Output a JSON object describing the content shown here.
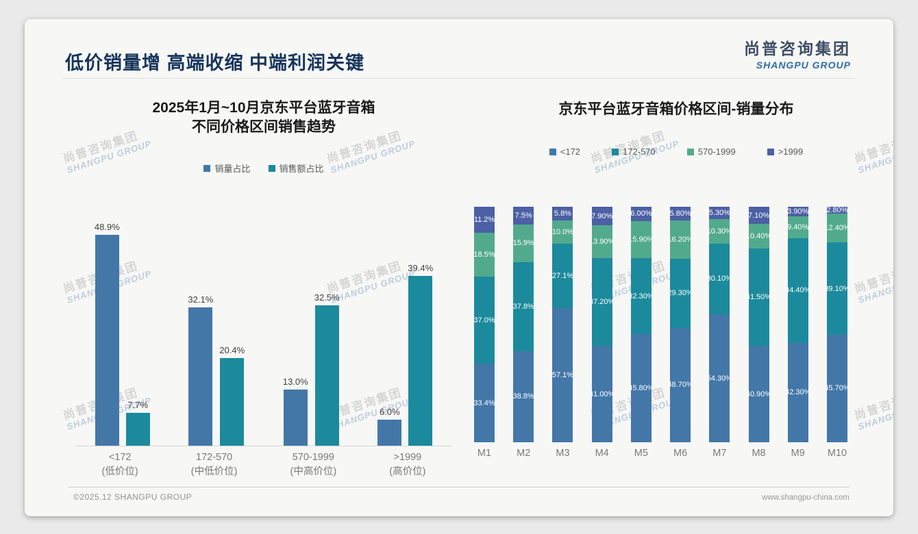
{
  "header": {
    "title": "低价销量增 高端收缩 中端利润关键",
    "logo_cn": "尚普咨询集团",
    "logo_en": "SHANGPU GROUP"
  },
  "watermark": {
    "line1": "尚普咨询集团",
    "line2": "SHANGPU GROUP"
  },
  "footer": {
    "copyright": "©2025.12 SHANGPU GROUP",
    "website": "www.shangpu-china.com"
  },
  "colors": {
    "steel_blue": "#4377a8",
    "teal": "#1b8a9c",
    "seafoam_green": "#52aa8c",
    "indigo": "#4c60a4"
  },
  "chart_data": [
    {
      "type": "bar",
      "title_line1": "2025年1月~10月京东平台蓝牙音箱",
      "title_line2": "不同价格区间销售趋势",
      "legend_position": "top",
      "grid": false,
      "ylim": [
        0,
        52
      ],
      "categories": [
        {
          "range": "<172",
          "tier": "(低价位)"
        },
        {
          "range": "172-570",
          "tier": "(中低价位)"
        },
        {
          "range": "570-1999",
          "tier": "(中高价位)"
        },
        {
          "range": ">1999",
          "tier": "(高价位)"
        }
      ],
      "series": [
        {
          "name": "销量占比",
          "color": "#4377a8",
          "values": [
            48.9,
            32.1,
            13.0,
            6.0
          ],
          "labels": [
            "48.9%",
            "32.1%",
            "13.0%",
            "6.0%"
          ]
        },
        {
          "name": "销售额占比",
          "color": "#1b8a9c",
          "values": [
            7.7,
            20.4,
            32.5,
            39.4
          ],
          "labels": [
            "7.7%",
            "20.4%",
            "32.5%",
            "39.4%"
          ]
        }
      ]
    },
    {
      "type": "bar",
      "stacked": true,
      "title": "京东平台蓝牙音箱价格区间-销量分布",
      "legend_position": "top",
      "grid": false,
      "ylim": [
        0,
        100
      ],
      "categories": [
        "M1",
        "M2",
        "M3",
        "M4",
        "M5",
        "M6",
        "M7",
        "M8",
        "M9",
        "M10"
      ],
      "series": [
        {
          "name": "<172",
          "color": "#4377a8",
          "values": [
            33.4,
            38.8,
            57.1,
            41.0,
            45.8,
            48.7,
            54.3,
            40.9,
            42.3,
            45.7
          ],
          "labels": [
            "33.4%",
            "38.8%",
            "57.1%",
            "41.00%",
            "45.80%",
            "48.70%",
            "54.30%",
            "40.90%",
            "42.30%",
            "45.70%"
          ]
        },
        {
          "name": "172-570",
          "color": "#1b8a9c",
          "values": [
            37.0,
            37.8,
            27.1,
            37.2,
            32.3,
            29.3,
            30.1,
            41.5,
            44.4,
            39.1
          ],
          "labels": [
            "37.0%",
            "37.8%",
            "27.1%",
            "37.20%",
            "32.30%",
            "29.30%",
            "30.10%",
            "41.50%",
            "44.40%",
            "39.10%"
          ]
        },
        {
          "name": "570-1999",
          "color": "#52aa8c",
          "values": [
            18.5,
            15.9,
            10.0,
            13.9,
            15.9,
            16.2,
            10.3,
            10.4,
            9.4,
            12.4
          ],
          "labels": [
            "18.5%",
            "15.9%",
            "10.0%",
            "13.90%",
            "15.90%",
            "16.20%",
            "10.30%",
            "10.40%",
            "9.40%",
            "12.40%"
          ]
        },
        {
          "name": ">1999",
          "color": "#4c60a4",
          "values": [
            11.2,
            7.5,
            5.8,
            7.9,
            6.0,
            5.8,
            5.3,
            7.1,
            3.9,
            2.8
          ],
          "labels": [
            "11.2%",
            "7.5%",
            "5.8%",
            "7.90%",
            "6.00%",
            "5.80%",
            "5.30%",
            "7.10%",
            "3.90%",
            "2.80%"
          ]
        }
      ]
    }
  ]
}
